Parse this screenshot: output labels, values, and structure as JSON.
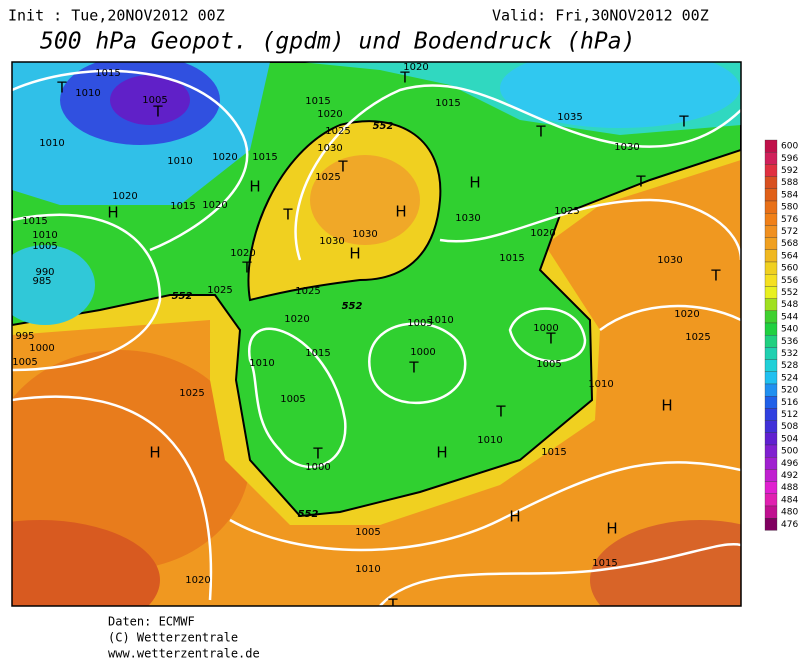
{
  "header": {
    "init": "Init : Tue,20NOV2012 00Z",
    "valid": "Valid: Fri,30NOV2012 00Z",
    "title": "500 hPa Geopot. (gpdm) und Bodendruck (hPa)"
  },
  "footer": {
    "source": "Daten: ECMWF",
    "copyright": "(C) Wetterzentrale",
    "url": "www.wetterzentrale.de"
  },
  "legend": {
    "levels": [
      "600",
      "596",
      "592",
      "588",
      "584",
      "580",
      "576",
      "572",
      "568",
      "564",
      "560",
      "556",
      "552",
      "548",
      "544",
      "540",
      "536",
      "532",
      "528",
      "524",
      "520",
      "516",
      "512",
      "508",
      "504",
      "500",
      "496",
      "492",
      "488",
      "484",
      "480",
      "476"
    ],
    "colors": [
      "#c0104a",
      "#d0205a",
      "#e03040",
      "#d85020",
      "#e06018",
      "#e87018",
      "#f08018",
      "#f09020",
      "#f0a020",
      "#f0b820",
      "#f0d020",
      "#f5e020",
      "#e8f020",
      "#a0e020",
      "#40d030",
      "#20d040",
      "#20d080",
      "#20d0b0",
      "#20d0d8",
      "#20c0f0",
      "#2090f0",
      "#2060e8",
      "#3040e0",
      "#4030d8",
      "#6020d0",
      "#8020d0",
      "#a020d0",
      "#c020d0",
      "#e020d0",
      "#e020b0",
      "#c01090",
      "#800060"
    ]
  },
  "map": {
    "labels": [
      "1015",
      "1010",
      "T",
      "1005",
      "T",
      "1010",
      "1010",
      "1020",
      "1015",
      "1020",
      "H",
      "1015",
      "1020",
      "1015",
      "1010",
      "1005",
      "990",
      "985",
      "1020",
      "T",
      "1025",
      "552",
      "995",
      "1000",
      "1005",
      "1025",
      "H",
      "1020",
      "1010",
      "1005",
      "552",
      "1010",
      "1015",
      "1020",
      "1025",
      "552",
      "1005",
      "1000",
      "T",
      "1005",
      "1000",
      "T",
      "1010",
      "T",
      "1010",
      "H",
      "1015",
      "1010",
      "1005",
      "1000",
      "T",
      "1015",
      "1020",
      "1030",
      "1025",
      "1030",
      "1020",
      "1025",
      "T",
      "T",
      "1030",
      "1035",
      "T",
      "T",
      "H",
      "H",
      "1030",
      "1030",
      "H",
      "1025",
      "T",
      "T",
      "1030",
      "1025",
      "552",
      "1020",
      "1015",
      "1015",
      "T",
      "1020",
      "H",
      "H",
      "H",
      "1015",
      "H",
      "T"
    ]
  }
}
